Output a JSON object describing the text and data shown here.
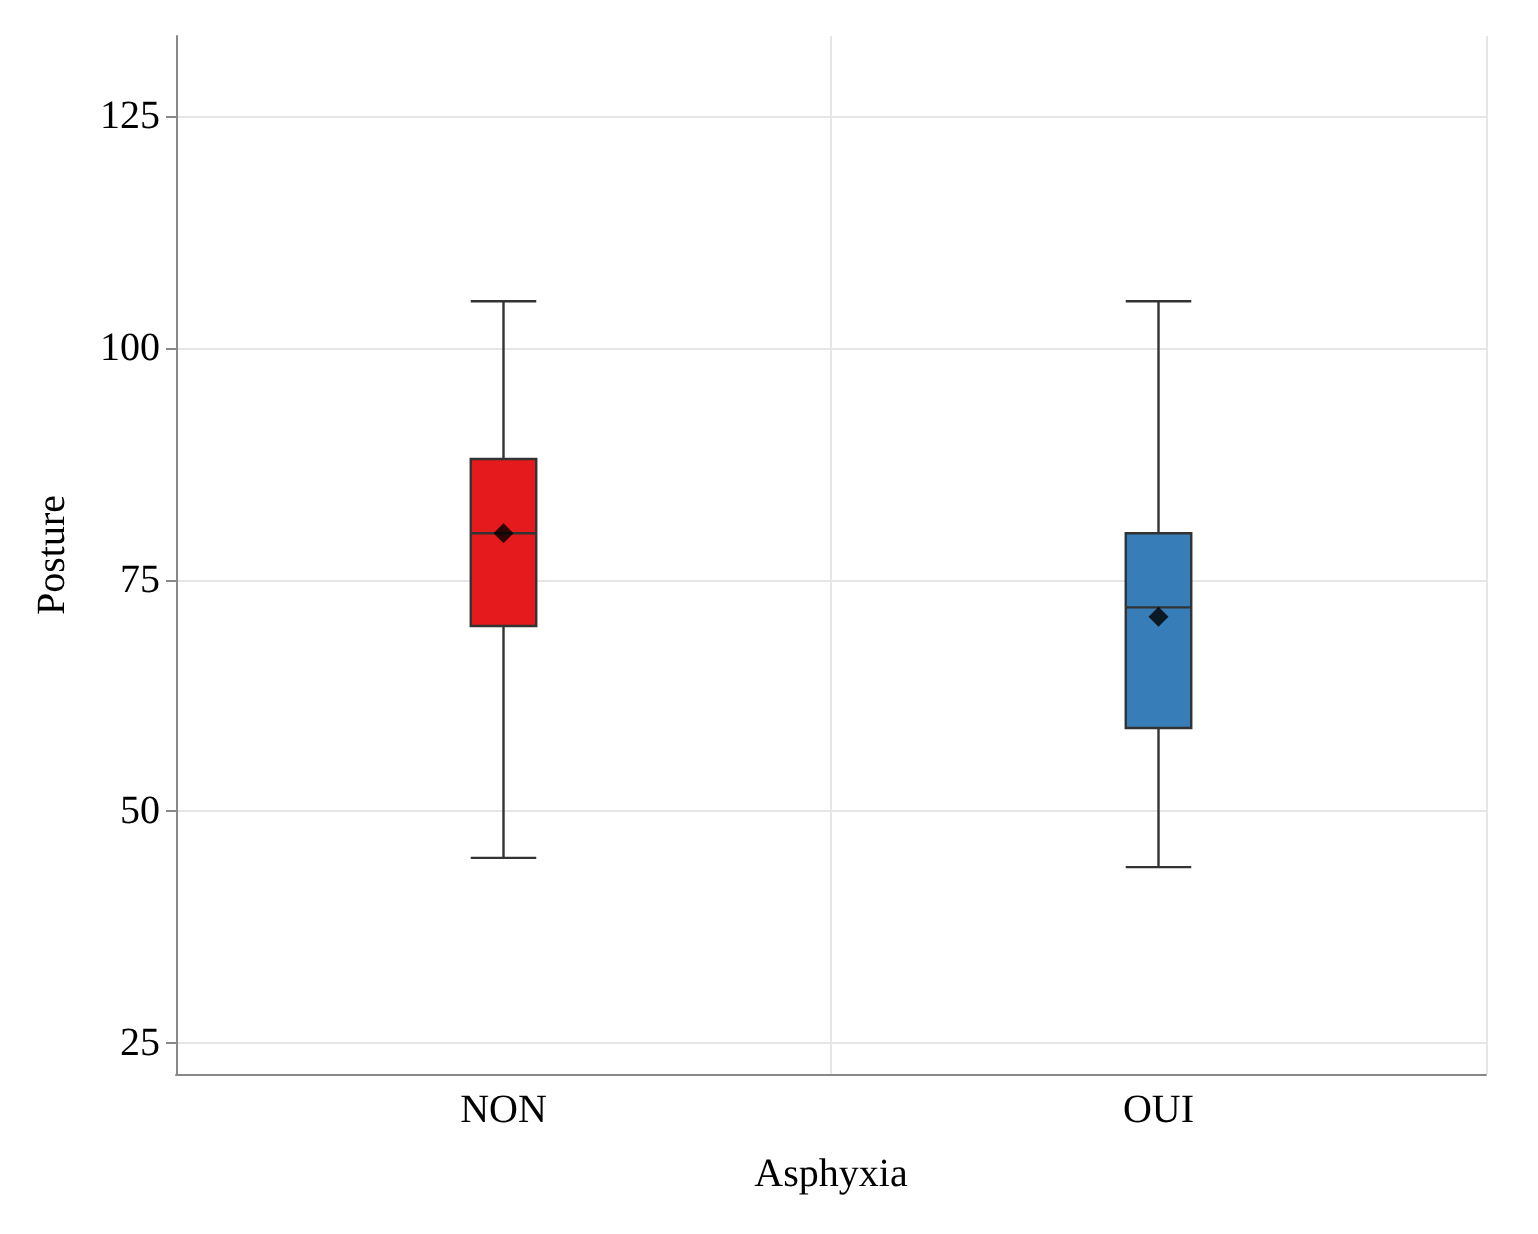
{
  "chart_data": {
    "type": "box",
    "xlabel": "Asphyxia",
    "ylabel": "Posture",
    "categories": [
      "NON",
      "OUI"
    ],
    "boxes": [
      {
        "low": 45,
        "q1": 70,
        "median": 80,
        "q3": 88,
        "high": 105,
        "mean": 80
      },
      {
        "low": 44,
        "q1": 59,
        "median": 72,
        "q3": 80,
        "high": 105,
        "mean": 71
      }
    ],
    "colors": [
      "#e41a1c",
      "#377eb8"
    ],
    "ylim": [
      21.7,
      133.6
    ],
    "yticks": [
      25,
      50,
      75,
      100,
      125
    ],
    "grid": true,
    "marker": "diamond"
  }
}
